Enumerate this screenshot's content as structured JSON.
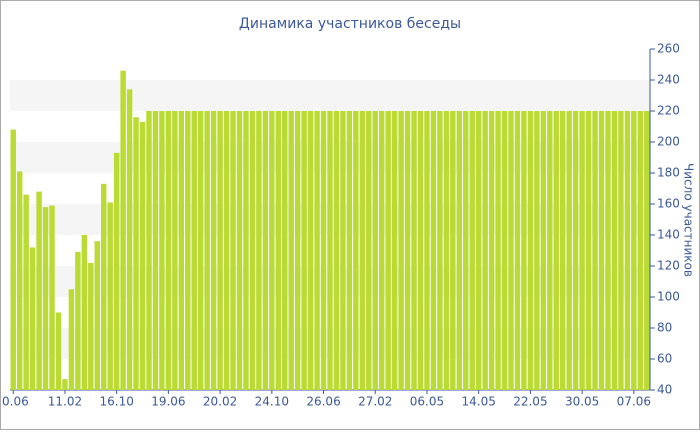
{
  "chart_data": {
    "type": "bar",
    "title": "Динамика участников беседы",
    "y_axis_label": "Число участников",
    "categories": [
      "0.06",
      null,
      null,
      null,
      null,
      null,
      null,
      null,
      "11.02",
      null,
      null,
      null,
      null,
      null,
      null,
      null,
      "16.10",
      null,
      null,
      null,
      null,
      null,
      null,
      null,
      "19.06",
      null,
      null,
      null,
      null,
      null,
      null,
      null,
      "20.02",
      null,
      null,
      null,
      null,
      null,
      null,
      null,
      "24.10",
      null,
      null,
      null,
      null,
      null,
      null,
      null,
      "26.06",
      null,
      null,
      null,
      null,
      null,
      null,
      null,
      "27.02",
      null,
      null,
      null,
      null,
      null,
      null,
      null,
      "06.05",
      null,
      null,
      null,
      null,
      null,
      null,
      null,
      "14.05",
      null,
      null,
      null,
      null,
      null,
      null,
      null,
      "22.05",
      null,
      null,
      null,
      null,
      null,
      null,
      null,
      "30.05",
      null,
      null,
      null,
      null,
      null,
      null,
      null,
      "07.06",
      null,
      null
    ],
    "values": [
      208,
      181,
      166,
      132,
      168,
      158,
      159,
      90,
      47,
      105,
      129,
      140,
      122,
      136,
      173,
      161,
      193,
      246,
      234,
      216,
      213,
      220,
      220,
      220,
      220,
      220,
      220,
      220,
      220,
      220,
      220,
      220,
      220,
      220,
      220,
      220,
      220,
      220,
      220,
      220,
      220,
      220,
      220,
      220,
      220,
      220,
      220,
      220,
      220,
      220,
      220,
      220,
      220,
      220,
      220,
      220,
      220,
      220,
      220,
      220,
      220,
      220,
      220,
      220,
      220,
      220,
      220,
      220,
      220,
      220,
      220,
      220,
      220,
      220,
      220,
      220,
      220,
      220,
      220,
      220,
      220,
      220,
      220,
      220,
      220,
      220,
      220,
      220,
      220,
      220,
      220,
      220,
      220,
      220,
      220,
      220,
      220,
      220,
      220
    ],
    "color": "#bada34",
    "ylim": [
      40,
      260
    ],
    "yticks": [
      40,
      60,
      80,
      100,
      120,
      140,
      160,
      180,
      200,
      220,
      240,
      260
    ],
    "grid": "bands",
    "y_axis_side": "right"
  }
}
